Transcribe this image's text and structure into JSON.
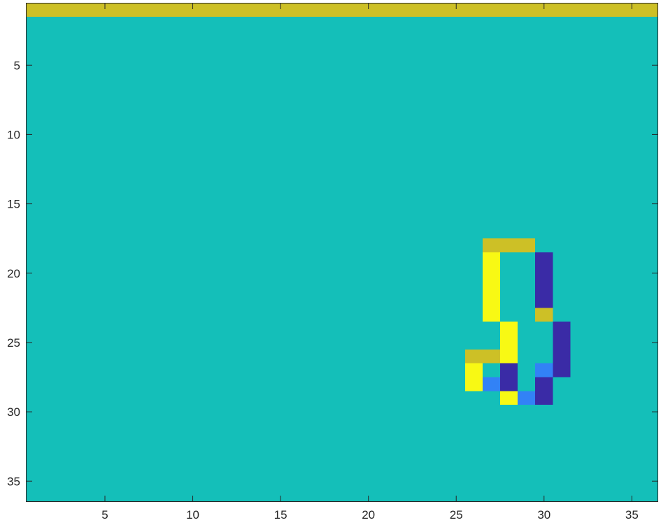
{
  "chart_data": {
    "type": "heatmap",
    "title": "",
    "xlabel": "",
    "ylabel": "",
    "xlim": [
      0.5,
      36.5
    ],
    "ylim": [
      0.5,
      36.5
    ],
    "y_direction": "reverse",
    "x_ticks": [
      5,
      10,
      15,
      20,
      25,
      30,
      35
    ],
    "y_ticks": [
      5,
      10,
      15,
      20,
      25,
      30,
      35
    ],
    "grid": false,
    "colorbar": false,
    "background_color": "#14bfb9",
    "value_colors": {
      "1": "#3a2ba6",
      "2": "#3282f6",
      "3": "#14bfb9",
      "4": "#cdc026",
      "5": "#f8f914"
    },
    "grid_size": {
      "rows": 36,
      "cols": 36
    },
    "default_value": 3,
    "cells": [
      {
        "row": 1,
        "col_start": 1,
        "col_end": 36,
        "value": 4
      },
      {
        "row": 18,
        "col_start": 27,
        "col_end": 29,
        "value": 4
      },
      {
        "row": 19,
        "col_start": 27,
        "col_end": 27,
        "value": 5
      },
      {
        "row": 19,
        "col_start": 30,
        "col_end": 30,
        "value": 1
      },
      {
        "row": 20,
        "col_start": 27,
        "col_end": 27,
        "value": 5
      },
      {
        "row": 20,
        "col_start": 30,
        "col_end": 30,
        "value": 1
      },
      {
        "row": 21,
        "col_start": 27,
        "col_end": 27,
        "value": 5
      },
      {
        "row": 21,
        "col_start": 30,
        "col_end": 30,
        "value": 1
      },
      {
        "row": 22,
        "col_start": 27,
        "col_end": 27,
        "value": 5
      },
      {
        "row": 22,
        "col_start": 30,
        "col_end": 30,
        "value": 1
      },
      {
        "row": 23,
        "col_start": 27,
        "col_end": 27,
        "value": 5
      },
      {
        "row": 23,
        "col_start": 30,
        "col_end": 30,
        "value": 4
      },
      {
        "row": 24,
        "col_start": 28,
        "col_end": 28,
        "value": 5
      },
      {
        "row": 24,
        "col_start": 31,
        "col_end": 31,
        "value": 1
      },
      {
        "row": 25,
        "col_start": 28,
        "col_end": 28,
        "value": 5
      },
      {
        "row": 25,
        "col_start": 31,
        "col_end": 31,
        "value": 1
      },
      {
        "row": 26,
        "col_start": 26,
        "col_end": 27,
        "value": 4
      },
      {
        "row": 26,
        "col_start": 28,
        "col_end": 28,
        "value": 5
      },
      {
        "row": 26,
        "col_start": 31,
        "col_end": 31,
        "value": 1
      },
      {
        "row": 27,
        "col_start": 26,
        "col_end": 26,
        "value": 5
      },
      {
        "row": 27,
        "col_start": 28,
        "col_end": 28,
        "value": 1
      },
      {
        "row": 27,
        "col_start": 30,
        "col_end": 30,
        "value": 2
      },
      {
        "row": 27,
        "col_start": 31,
        "col_end": 31,
        "value": 1
      },
      {
        "row": 28,
        "col_start": 26,
        "col_end": 26,
        "value": 5
      },
      {
        "row": 28,
        "col_start": 27,
        "col_end": 27,
        "value": 2
      },
      {
        "row": 28,
        "col_start": 28,
        "col_end": 28,
        "value": 1
      },
      {
        "row": 28,
        "col_start": 30,
        "col_end": 30,
        "value": 1
      },
      {
        "row": 29,
        "col_start": 28,
        "col_end": 28,
        "value": 5
      },
      {
        "row": 29,
        "col_start": 29,
        "col_end": 29,
        "value": 2
      },
      {
        "row": 29,
        "col_start": 30,
        "col_end": 30,
        "value": 1
      }
    ]
  }
}
